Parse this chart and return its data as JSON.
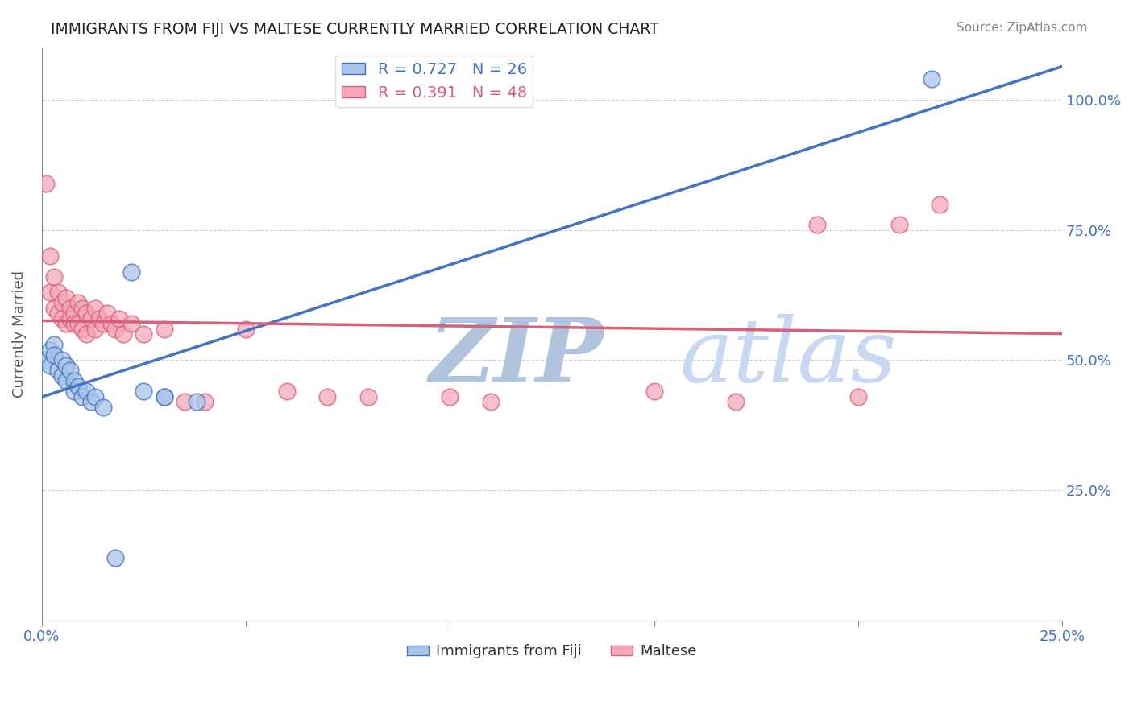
{
  "title": "IMMIGRANTS FROM FIJI VS MALTESE CURRENTLY MARRIED CORRELATION CHART",
  "source": "Source: ZipAtlas.com",
  "ylabel": "Currently Married",
  "xlim": [
    0.0,
    0.25
  ],
  "ylim": [
    0.0,
    1.1
  ],
  "fiji_R": 0.727,
  "fiji_N": 26,
  "maltese_R": 0.391,
  "maltese_N": 48,
  "fiji_color": "#a8c4e8",
  "fiji_line_color": "#4472c4",
  "maltese_color": "#f4a7b9",
  "maltese_line_color": "#d9607a",
  "watermark_zip_color": "#c5d5eb",
  "watermark_atlas_color": "#b8cce4",
  "background_color": "#ffffff",
  "grid_color": "#cccccc",
  "right_ytick_color": "#4472c4",
  "bottom_xtick_color": "#4472c4",
  "fiji_x": [
    0.001,
    0.002,
    0.002,
    0.003,
    0.003,
    0.004,
    0.005,
    0.005,
    0.006,
    0.006,
    0.007,
    0.008,
    0.008,
    0.009,
    0.01,
    0.011,
    0.012,
    0.013,
    0.015,
    0.018,
    0.022,
    0.025,
    0.03,
    0.038,
    0.03,
    0.218
  ],
  "fiji_y": [
    0.5,
    0.52,
    0.49,
    0.53,
    0.51,
    0.48,
    0.5,
    0.47,
    0.49,
    0.46,
    0.48,
    0.46,
    0.44,
    0.45,
    0.43,
    0.44,
    0.42,
    0.43,
    0.41,
    0.12,
    0.67,
    0.44,
    0.43,
    0.42,
    0.43,
    1.04
  ],
  "maltese_x": [
    0.001,
    0.002,
    0.002,
    0.003,
    0.003,
    0.004,
    0.004,
    0.005,
    0.005,
    0.006,
    0.006,
    0.007,
    0.007,
    0.008,
    0.008,
    0.009,
    0.009,
    0.01,
    0.01,
    0.011,
    0.011,
    0.012,
    0.013,
    0.013,
    0.014,
    0.015,
    0.016,
    0.017,
    0.018,
    0.019,
    0.02,
    0.022,
    0.025,
    0.03,
    0.035,
    0.04,
    0.05,
    0.06,
    0.07,
    0.08,
    0.1,
    0.11,
    0.15,
    0.17,
    0.19,
    0.2,
    0.21,
    0.22
  ],
  "maltese_y": [
    0.84,
    0.7,
    0.63,
    0.66,
    0.6,
    0.63,
    0.59,
    0.61,
    0.58,
    0.62,
    0.57,
    0.6,
    0.58,
    0.59,
    0.57,
    0.61,
    0.57,
    0.6,
    0.56,
    0.59,
    0.55,
    0.58,
    0.6,
    0.56,
    0.58,
    0.57,
    0.59,
    0.57,
    0.56,
    0.58,
    0.55,
    0.57,
    0.55,
    0.56,
    0.42,
    0.42,
    0.56,
    0.44,
    0.43,
    0.43,
    0.43,
    0.42,
    0.44,
    0.42,
    0.76,
    0.43,
    0.76,
    0.8
  ],
  "legend_fiji_label": "R = 0.727   N = 26",
  "legend_maltese_label": "R = 0.391   N = 48"
}
